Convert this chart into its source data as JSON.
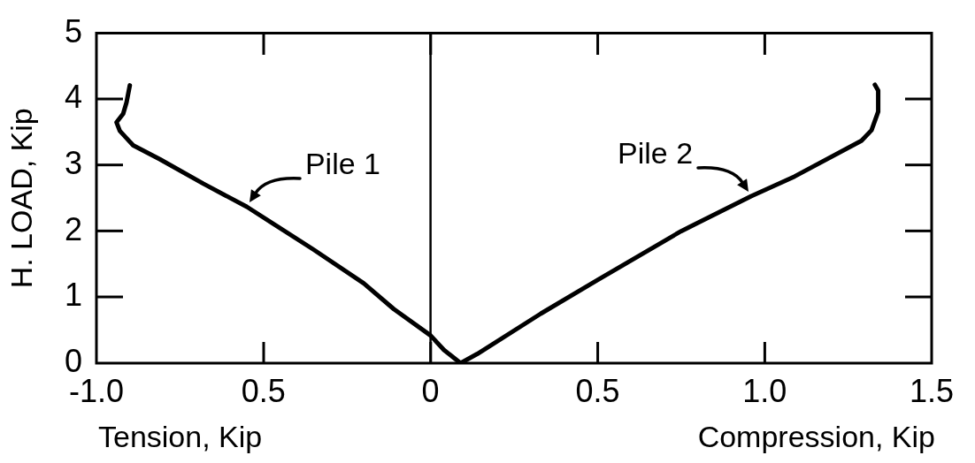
{
  "chart_data": {
    "type": "line",
    "xlabel": "Tension, Kip",
    "ylabel": "H. LOAD, Kip",
    "annotations": [
      "Compression, Kip"
    ],
    "xlim": [
      -1,
      1.5
    ],
    "xticks": [
      {
        "value": -1,
        "label": "-1.0"
      },
      {
        "value": -0.5,
        "label": "0.5"
      },
      0,
      0.5,
      {
        "value": 1,
        "label": "1.0"
      },
      1.5
    ],
    "ylim": [
      0,
      5
    ],
    "yticks": [
      0,
      1,
      2,
      3,
      4,
      5
    ],
    "grid": false,
    "legend": false,
    "marker": "none",
    "line_style": "solid",
    "ref_lines": [
      {
        "axis": "x",
        "value": 0,
        "color": "#000000"
      }
    ],
    "series": [
      {
        "name": "Pile 1",
        "color": "#000000",
        "x": [
          0.09,
          0.04,
          0,
          -0.11,
          -0.2,
          -0.35,
          -0.55,
          -0.68,
          -0.81,
          -0.89,
          -0.91,
          -0.93,
          -0.94,
          -0.92,
          -0.91,
          -0.9
        ],
        "values": [
          0,
          0.2,
          0.42,
          0.82,
          1.21,
          1.72,
          2.37,
          2.72,
          3.09,
          3.3,
          3.41,
          3.52,
          3.65,
          3.78,
          3.95,
          4.21
        ]
      },
      {
        "name": "Pile 2",
        "color": "#000000",
        "x": [
          0.09,
          0.14,
          0.33,
          0.5,
          0.75,
          0.96,
          1.09,
          1.29,
          1.32,
          1.34,
          1.34,
          1.33
        ],
        "values": [
          0,
          0.14,
          0.75,
          1.26,
          2.0,
          2.53,
          2.83,
          3.37,
          3.53,
          3.81,
          4.13,
          4.22
        ]
      }
    ]
  }
}
